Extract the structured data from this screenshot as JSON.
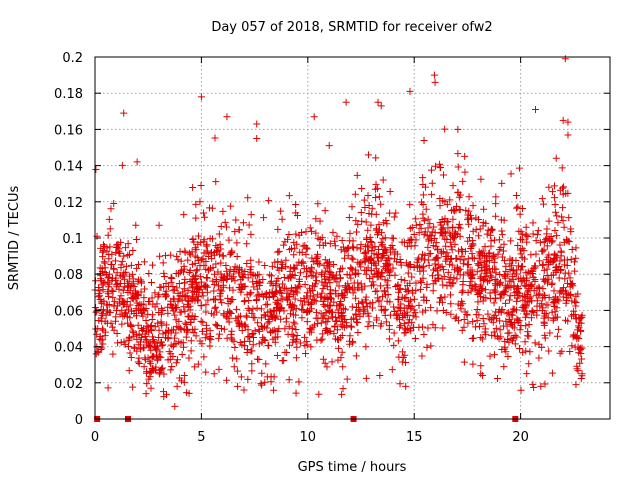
{
  "chart_data": {
    "type": "scatter",
    "title": "Day 057 of 2018, SRMTID for receiver ofw2",
    "xlabel": "GPS time / hours",
    "ylabel": "SRMTID / TECUs",
    "xlim": [
      0,
      24.2
    ],
    "ylim": [
      0,
      0.2
    ],
    "x_ticks": [
      0,
      5,
      10,
      15,
      20
    ],
    "x_tick_labels": [
      "0",
      "5",
      "10",
      "15",
      "20"
    ],
    "y_ticks": [
      0,
      0.02,
      0.04,
      0.06,
      0.08,
      0.1,
      0.12,
      0.14,
      0.16,
      0.18,
      0.2
    ],
    "y_tick_labels": [
      "0",
      "0.02",
      "0.04",
      "0.06",
      "0.08",
      "0.1",
      "0.12",
      "0.14",
      "0.16",
      "0.18",
      "0.2"
    ],
    "grid": true,
    "marker": "+",
    "color": "#e00000",
    "zero_markers_x": [
      0.1,
      1.55,
      12.15,
      19.75
    ],
    "density_profile": [
      {
        "t": 0.0,
        "mean": 0.065,
        "spread": 0.022
      },
      {
        "t": 1.0,
        "mean": 0.075,
        "spread": 0.024
      },
      {
        "t": 2.0,
        "mean": 0.06,
        "spread": 0.028
      },
      {
        "t": 2.6,
        "mean": 0.045,
        "spread": 0.022
      },
      {
        "t": 3.5,
        "mean": 0.05,
        "spread": 0.024
      },
      {
        "t": 5.0,
        "mean": 0.07,
        "spread": 0.03
      },
      {
        "t": 6.0,
        "mean": 0.072,
        "spread": 0.028
      },
      {
        "t": 7.5,
        "mean": 0.055,
        "spread": 0.025
      },
      {
        "t": 9.0,
        "mean": 0.065,
        "spread": 0.025
      },
      {
        "t": 10.5,
        "mean": 0.07,
        "spread": 0.026
      },
      {
        "t": 11.5,
        "mean": 0.06,
        "spread": 0.025
      },
      {
        "t": 12.5,
        "mean": 0.085,
        "spread": 0.028
      },
      {
        "t": 13.5,
        "mean": 0.085,
        "spread": 0.028
      },
      {
        "t": 14.5,
        "mean": 0.055,
        "spread": 0.026
      },
      {
        "t": 15.5,
        "mean": 0.09,
        "spread": 0.03
      },
      {
        "t": 16.5,
        "mean": 0.095,
        "spread": 0.028
      },
      {
        "t": 17.5,
        "mean": 0.085,
        "spread": 0.028
      },
      {
        "t": 18.5,
        "mean": 0.075,
        "spread": 0.025
      },
      {
        "t": 19.5,
        "mean": 0.07,
        "spread": 0.026
      },
      {
        "t": 20.5,
        "mean": 0.07,
        "spread": 0.028
      },
      {
        "t": 21.5,
        "mean": 0.075,
        "spread": 0.032
      },
      {
        "t": 22.2,
        "mean": 0.085,
        "spread": 0.03
      },
      {
        "t": 22.8,
        "mean": 0.04,
        "spread": 0.015
      }
    ],
    "num_points": 2600,
    "highlight_points": [
      {
        "x": 22.1,
        "y": 0.199
      },
      {
        "x": 15.95,
        "y": 0.19
      },
      {
        "x": 15.98,
        "y": 0.186
      },
      {
        "x": 14.8,
        "y": 0.181
      },
      {
        "x": 5.0,
        "y": 0.178
      },
      {
        "x": 13.3,
        "y": 0.175
      },
      {
        "x": 11.8,
        "y": 0.175
      },
      {
        "x": 13.45,
        "y": 0.173
      },
      {
        "x": 20.7,
        "y": 0.171
      },
      {
        "x": 1.35,
        "y": 0.169
      },
      {
        "x": 10.3,
        "y": 0.167
      },
      {
        "x": 6.2,
        "y": 0.167
      },
      {
        "x": 22.0,
        "y": 0.165
      },
      {
        "x": 7.6,
        "y": 0.163
      },
      {
        "x": 17.05,
        "y": 0.16
      },
      {
        "x": 3.75,
        "y": 0.007
      },
      {
        "x": 2.4,
        "y": 0.014
      },
      {
        "x": 7.0,
        "y": 0.016
      },
      {
        "x": 14.6,
        "y": 0.018
      },
      {
        "x": 22.6,
        "y": 0.019
      },
      {
        "x": 20.95,
        "y": 0.018
      },
      {
        "x": 6.7,
        "y": 0.018
      },
      {
        "x": 11.85,
        "y": 0.022
      },
      {
        "x": 5.6,
        "y": 0.025
      },
      {
        "x": 4.2,
        "y": 0.024
      }
    ]
  }
}
